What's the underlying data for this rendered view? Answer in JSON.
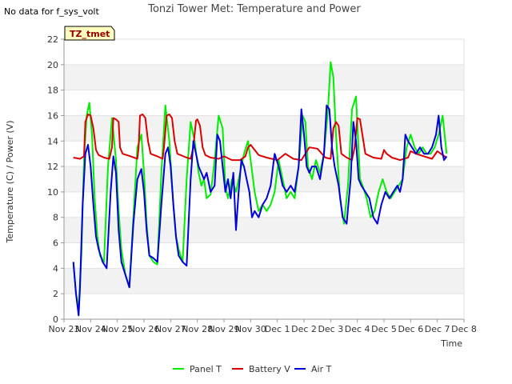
{
  "header": {
    "title": "Tonzi Tower Met: Temperature and Power",
    "nodata": "No data for f_sys_volt"
  },
  "tag_label": "TZ_tmet",
  "chart_data": {
    "type": "line",
    "title": "Tonzi Tower Met: Temperature and Power",
    "xlabel": "Time",
    "ylabel": "Temperature (C) / Power (V)",
    "ylim": [
      0,
      22
    ],
    "xlim": [
      0,
      15
    ],
    "yticks": [
      0,
      2,
      4,
      6,
      8,
      10,
      12,
      14,
      16,
      18,
      20,
      22
    ],
    "ytick_labels": [
      "0",
      "2",
      "4",
      "6",
      "8",
      "10",
      "12",
      "14",
      "16",
      "18",
      "20",
      "22"
    ],
    "xticks": [
      0,
      1,
      2,
      3,
      4,
      5,
      6,
      7,
      8,
      9,
      10,
      11,
      12,
      13,
      14,
      15
    ],
    "xtick_labels": [
      "Nov 23",
      "Nov 24",
      "Nov 25",
      "Nov 26",
      "Nov 27",
      "Nov 28",
      "Nov 29",
      "Nov 30",
      "Dec 1",
      "Dec 2",
      "Dec 3",
      "Dec 4",
      "Dec 5",
      "Dec 6",
      "Dec 7",
      "Dec 8"
    ],
    "grid": "horizontal bands",
    "legend_position": "bottom",
    "series": [
      {
        "name": "Panel T",
        "color": "#00ee00",
        "x": [
          0.35,
          0.45,
          0.55,
          0.65,
          0.75,
          0.85,
          0.95,
          1.05,
          1.15,
          1.25,
          1.35,
          1.5,
          1.65,
          1.8,
          1.95,
          2.05,
          2.15,
          2.3,
          2.45,
          2.6,
          2.75,
          2.9,
          3.0,
          3.1,
          3.2,
          3.35,
          3.5,
          3.65,
          3.8,
          3.95,
          4.1,
          4.2,
          4.3,
          4.45,
          4.6,
          4.75,
          4.9,
          5.05,
          5.15,
          5.25,
          5.35,
          5.5,
          5.65,
          5.8,
          5.95,
          6.05,
          6.15,
          6.3,
          6.45,
          6.6,
          6.75,
          6.9,
          7.0,
          7.15,
          7.3,
          7.45,
          7.6,
          7.75,
          7.9,
          8.05,
          8.2,
          8.35,
          8.5,
          8.65,
          8.8,
          8.95,
          9.05,
          9.15,
          9.3,
          9.45,
          9.6,
          9.75,
          9.9,
          10.0,
          10.1,
          10.2,
          10.35,
          10.5,
          10.65,
          10.8,
          10.95,
          11.1,
          11.2,
          11.35,
          11.5,
          11.65,
          11.8,
          11.95,
          12.1,
          12.25,
          12.4,
          12.55,
          12.7,
          12.85,
          13.0,
          13.15,
          13.3,
          13.45,
          13.6,
          13.75,
          13.9,
          14.05,
          14.2,
          14.35
        ],
        "y": [
          4.5,
          2.0,
          0.8,
          5.0,
          12.5,
          16.0,
          17.0,
          14.5,
          9.5,
          6.5,
          5.0,
          4.5,
          12.0,
          15.8,
          12.5,
          8.5,
          5.5,
          3.5,
          2.5,
          8.0,
          13.5,
          14.5,
          11.5,
          7.5,
          5.0,
          4.5,
          4.3,
          11.5,
          16.8,
          14.0,
          9.0,
          6.5,
          5.5,
          4.5,
          11.0,
          15.5,
          14.0,
          11.5,
          10.5,
          11.0,
          9.5,
          9.8,
          12.5,
          16.0,
          15.0,
          10.5,
          9.5,
          11.0,
          10.0,
          11.5,
          13.0,
          14.0,
          12.5,
          10.0,
          8.5,
          9.0,
          8.5,
          9.0,
          10.0,
          12.5,
          11.0,
          9.5,
          10.0,
          9.5,
          12.0,
          16.0,
          15.5,
          12.0,
          11.0,
          12.5,
          11.5,
          13.0,
          16.5,
          20.2,
          19.0,
          14.5,
          9.5,
          7.5,
          10.5,
          16.5,
          17.5,
          11.0,
          10.5,
          9.5,
          8.0,
          8.5,
          10.0,
          11.0,
          10.0,
          9.5,
          10.0,
          10.5,
          11.0,
          13.5,
          14.5,
          13.5,
          13.0,
          13.5,
          13.0,
          13.0,
          13.5,
          14.5,
          16.0,
          13.0
        ]
      },
      {
        "name": "Battery V",
        "color": "#dd0000",
        "x": [
          0.35,
          0.6,
          0.75,
          0.8,
          0.9,
          1.0,
          1.1,
          1.2,
          1.3,
          1.5,
          1.7,
          1.8,
          1.85,
          1.95,
          2.05,
          2.1,
          2.2,
          2.5,
          2.75,
          2.8,
          2.85,
          2.95,
          3.05,
          3.15,
          3.25,
          3.5,
          3.7,
          3.75,
          3.85,
          3.95,
          4.05,
          4.15,
          4.25,
          4.6,
          4.75,
          4.85,
          4.95,
          5.0,
          5.1,
          5.2,
          5.3,
          5.5,
          5.8,
          6.0,
          6.3,
          6.6,
          6.8,
          6.9,
          7.0,
          7.15,
          7.3,
          7.6,
          8.0,
          8.3,
          8.6,
          8.9,
          9.2,
          9.5,
          9.8,
          10.0,
          10.1,
          10.2,
          10.3,
          10.4,
          10.6,
          10.8,
          10.9,
          11.0,
          11.1,
          11.3,
          11.6,
          11.9,
          12.0,
          12.1,
          12.3,
          12.6,
          12.9,
          13.0,
          13.2,
          13.5,
          13.8,
          14.0,
          14.2,
          14.35
        ],
        "y": [
          12.7,
          12.6,
          12.8,
          15.5,
          16.1,
          16.0,
          15.0,
          13.3,
          12.9,
          12.7,
          12.6,
          13.5,
          15.8,
          15.7,
          15.5,
          13.5,
          13.0,
          12.8,
          12.6,
          13.5,
          16.0,
          16.1,
          15.8,
          14.0,
          13.0,
          12.8,
          12.6,
          13.5,
          16.0,
          16.1,
          15.8,
          14.0,
          13.0,
          12.7,
          12.6,
          13.5,
          15.6,
          15.7,
          15.2,
          13.5,
          12.9,
          12.7,
          12.6,
          12.8,
          12.5,
          12.5,
          12.8,
          13.5,
          13.7,
          13.3,
          12.9,
          12.7,
          12.5,
          13.0,
          12.6,
          12.5,
          13.5,
          13.4,
          12.7,
          12.6,
          15.0,
          15.5,
          15.2,
          13.0,
          12.7,
          12.5,
          13.5,
          15.8,
          15.7,
          13.0,
          12.7,
          12.6,
          13.3,
          13.0,
          12.7,
          12.5,
          12.7,
          13.2,
          13.0,
          12.8,
          12.6,
          13.2,
          12.9,
          12.7
        ]
      },
      {
        "name": "Air T",
        "color": "#0000dd",
        "x": [
          0.35,
          0.45,
          0.55,
          0.6,
          0.7,
          0.8,
          0.9,
          1.0,
          1.1,
          1.2,
          1.3,
          1.45,
          1.6,
          1.75,
          1.85,
          1.95,
          2.05,
          2.15,
          2.3,
          2.45,
          2.6,
          2.75,
          2.9,
          3.0,
          3.1,
          3.2,
          3.35,
          3.5,
          3.65,
          3.8,
          3.9,
          4.0,
          4.1,
          4.2,
          4.3,
          4.45,
          4.6,
          4.75,
          4.85,
          4.95,
          5.05,
          5.15,
          5.25,
          5.35,
          5.5,
          5.65,
          5.75,
          5.85,
          5.95,
          6.05,
          6.15,
          6.25,
          6.35,
          6.45,
          6.55,
          6.65,
          6.75,
          6.85,
          6.95,
          7.05,
          7.15,
          7.3,
          7.45,
          7.6,
          7.75,
          7.9,
          8.05,
          8.2,
          8.35,
          8.5,
          8.65,
          8.8,
          8.9,
          9.0,
          9.1,
          9.2,
          9.3,
          9.45,
          9.6,
          9.75,
          9.85,
          9.95,
          10.05,
          10.15,
          10.3,
          10.45,
          10.6,
          10.75,
          10.85,
          10.95,
          11.05,
          11.15,
          11.3,
          11.45,
          11.6,
          11.75,
          11.9,
          12.05,
          12.2,
          12.35,
          12.5,
          12.6,
          12.7,
          12.8,
          12.9,
          13.05,
          13.2,
          13.35,
          13.5,
          13.65,
          13.8,
          13.95,
          14.05,
          14.15,
          14.25,
          14.35
        ],
        "y": [
          4.5,
          2.0,
          0.3,
          2.5,
          9.0,
          13.0,
          13.7,
          12.0,
          9.0,
          6.5,
          5.5,
          4.5,
          4.0,
          10.0,
          12.8,
          11.5,
          7.0,
          4.5,
          3.5,
          2.5,
          7.5,
          11.0,
          11.8,
          10.0,
          7.0,
          5.0,
          4.8,
          4.5,
          9.0,
          13.0,
          13.5,
          12.0,
          9.0,
          6.5,
          5.0,
          4.5,
          4.2,
          11.0,
          14.0,
          13.0,
          12.0,
          11.5,
          11.0,
          11.5,
          10.0,
          10.5,
          14.5,
          14.0,
          12.0,
          10.0,
          11.0,
          9.5,
          11.5,
          7.0,
          10.0,
          12.5,
          12.0,
          11.0,
          10.0,
          8.0,
          8.5,
          8.0,
          9.0,
          9.5,
          10.5,
          13.0,
          12.0,
          10.5,
          10.0,
          10.5,
          10.0,
          12.0,
          16.5,
          14.5,
          12.0,
          11.5,
          12.0,
          12.0,
          11.0,
          13.0,
          16.8,
          16.5,
          13.5,
          12.0,
          10.5,
          8.0,
          7.5,
          11.0,
          15.5,
          14.0,
          11.0,
          10.5,
          10.0,
          9.5,
          8.0,
          7.5,
          9.0,
          10.0,
          9.5,
          10.0,
          10.5,
          10.0,
          11.0,
          14.5,
          14.0,
          13.5,
          13.0,
          13.5,
          13.0,
          13.0,
          13.5,
          14.5,
          16.0,
          13.5,
          12.5,
          12.8
        ]
      }
    ]
  }
}
